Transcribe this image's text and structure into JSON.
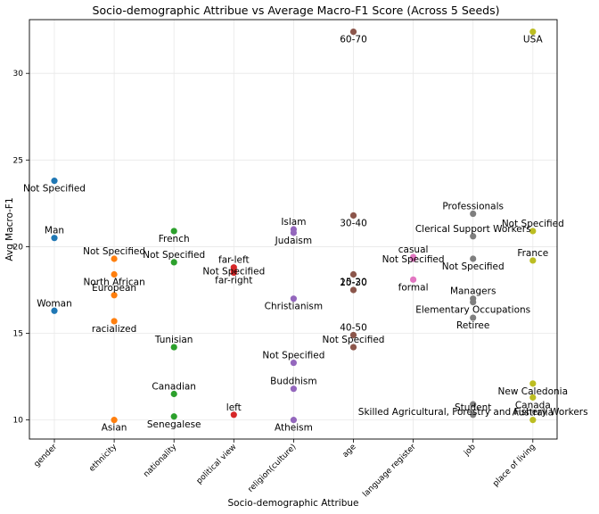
{
  "chart_data": {
    "type": "scatter",
    "title": "Socio-demographic Attribue vs Average Macro-F1 Score (Across 5 Seeds)",
    "xlabel": "Socio-demographic Attribue",
    "ylabel": "Avg Macro-F1",
    "categories": [
      "gender",
      "ethnicity",
      "nationality",
      "political view",
      "religion(culture)",
      "age",
      "language register",
      "job",
      "place of living"
    ],
    "ylim": [
      8.9,
      33.1
    ],
    "yticks": [
      10,
      15,
      20,
      25,
      30
    ],
    "grid": true,
    "colors": {
      "gender": "#1f77b4",
      "ethnicity": "#ff7f0e",
      "nationality": "#2ca02c",
      "political view": "#d62728",
      "religion(culture)": "#9467bd",
      "age": "#8c564b",
      "language register": "#e377c2",
      "job": "#7f7f7f",
      "place of living": "#bcbd22"
    },
    "points": [
      {
        "category": "gender",
        "label": "Not Specified",
        "value": 23.8,
        "pos": "below"
      },
      {
        "category": "gender",
        "label": "Man",
        "value": 20.5,
        "pos": "above"
      },
      {
        "category": "gender",
        "label": "Woman",
        "value": 16.3,
        "pos": "above"
      },
      {
        "category": "ethnicity",
        "label": "Not Specified",
        "value": 19.3,
        "pos": "above"
      },
      {
        "category": "ethnicity",
        "label": "North African",
        "value": 18.4,
        "pos": "below"
      },
      {
        "category": "ethnicity",
        "label": "European",
        "value": 17.2,
        "pos": "above"
      },
      {
        "category": "ethnicity",
        "label": "racialized",
        "value": 15.7,
        "pos": "below"
      },
      {
        "category": "ethnicity",
        "label": "Asian",
        "value": 10.0,
        "pos": "below"
      },
      {
        "category": "nationality",
        "label": "French",
        "value": 20.9,
        "pos": "below"
      },
      {
        "category": "nationality",
        "label": "Not Specified",
        "value": 19.1,
        "pos": "above"
      },
      {
        "category": "nationality",
        "label": "Tunisian",
        "value": 14.2,
        "pos": "above"
      },
      {
        "category": "nationality",
        "label": "Canadian",
        "value": 11.5,
        "pos": "above"
      },
      {
        "category": "nationality",
        "label": "Senegalese",
        "value": 10.2,
        "pos": "below"
      },
      {
        "category": "political view",
        "label": "far-left",
        "value": 18.8,
        "pos": "above"
      },
      {
        "category": "political view",
        "label": "Not Specified",
        "value": 18.6,
        "pos": "center"
      },
      {
        "category": "political view",
        "label": "far-right",
        "value": 18.5,
        "pos": "below"
      },
      {
        "category": "political view",
        "label": "left",
        "value": 10.3,
        "pos": "above"
      },
      {
        "category": "religion(culture)",
        "label": "Islam",
        "value": 21.0,
        "pos": "above"
      },
      {
        "category": "religion(culture)",
        "label": "Judaism",
        "value": 20.8,
        "pos": "below"
      },
      {
        "category": "religion(culture)",
        "label": "Christianism",
        "value": 17.0,
        "pos": "below"
      },
      {
        "category": "religion(culture)",
        "label": "Not Specified",
        "value": 13.3,
        "pos": "above"
      },
      {
        "category": "religion(culture)",
        "label": "Buddhism",
        "value": 11.8,
        "pos": "above"
      },
      {
        "category": "religion(culture)",
        "label": "Atheism",
        "value": 10.0,
        "pos": "below"
      },
      {
        "category": "age",
        "label": "60-70",
        "value": 32.4,
        "pos": "below"
      },
      {
        "category": "age",
        "label": "30-40",
        "value": 21.8,
        "pos": "below"
      },
      {
        "category": "age",
        "label": "15-20",
        "value": 18.4,
        "pos": "below"
      },
      {
        "category": "age",
        "label": "20-30",
        "value": 17.5,
        "pos": "above"
      },
      {
        "category": "age",
        "label": "40-50",
        "value": 14.9,
        "pos": "above"
      },
      {
        "category": "age",
        "label": "Not Specified",
        "value": 14.2,
        "pos": "above"
      },
      {
        "category": "language register",
        "label": "casual",
        "value": 19.4,
        "pos": "above"
      },
      {
        "category": "language register",
        "label": "Not Specified",
        "value": 19.3,
        "pos": "center"
      },
      {
        "category": "language register",
        "label": "formal",
        "value": 18.1,
        "pos": "below"
      },
      {
        "category": "job",
        "label": "Professionals",
        "value": 21.9,
        "pos": "above"
      },
      {
        "category": "job",
        "label": "Clerical Support Workers",
        "value": 20.6,
        "pos": "above"
      },
      {
        "category": "job",
        "label": "Not Specified",
        "value": 19.3,
        "pos": "below"
      },
      {
        "category": "job",
        "label": "Managers",
        "value": 17.0,
        "pos": "above"
      },
      {
        "category": "job",
        "label": "Elementary Occupations",
        "value": 16.8,
        "pos": "below"
      },
      {
        "category": "job",
        "label": "Retiree",
        "value": 15.9,
        "pos": "below"
      },
      {
        "category": "job",
        "label": "Skilled Agricultural, Forestry and Fishery Workers",
        "value": 10.9,
        "pos": "below"
      },
      {
        "category": "job",
        "label": "Student",
        "value": 10.3,
        "pos": "above"
      },
      {
        "category": "place of living",
        "label": "USA",
        "value": 32.4,
        "pos": "below"
      },
      {
        "category": "place of living",
        "label": "Not Specified",
        "value": 20.9,
        "pos": "above"
      },
      {
        "category": "place of living",
        "label": "France",
        "value": 19.2,
        "pos": "above"
      },
      {
        "category": "place of living",
        "label": "New Caledonia",
        "value": 12.1,
        "pos": "below"
      },
      {
        "category": "place of living",
        "label": "Canada",
        "value": 11.3,
        "pos": "below"
      },
      {
        "category": "place of living",
        "label": "Australia",
        "value": 10.0,
        "pos": "above"
      }
    ]
  }
}
